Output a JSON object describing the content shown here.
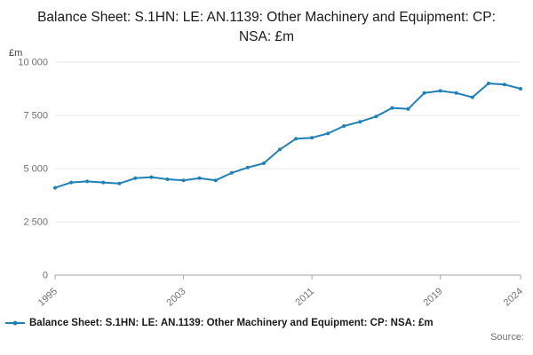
{
  "title": "Balance Sheet: S.1HN: LE: AN.1139: Other Machinery and Equipment: CP: NSA: £m",
  "source_label": "Source:",
  "legend": {
    "label": "Balance Sheet: S.1HN: LE: AN.1139: Other Machinery and Equipment: CP: NSA: £m"
  },
  "chart_data": {
    "type": "line",
    "title": "Balance Sheet: S.1HN: LE: AN.1139: Other Machinery and Equipment: CP: NSA: £m",
    "xlabel": "",
    "ylabel": "£m",
    "ylim": [
      0,
      10000
    ],
    "yticks": [
      0,
      2500,
      5000,
      7500,
      10000
    ],
    "ytick_labels": [
      "0",
      "2 500",
      "5 000",
      "7 500",
      "10 000"
    ],
    "xticks": [
      1995,
      2003,
      2011,
      2019,
      2024
    ],
    "grid": true,
    "legend_position": "bottom",
    "line_color": "#1f80b8",
    "x": [
      1995,
      1996,
      1997,
      1998,
      1999,
      2000,
      2001,
      2002,
      2003,
      2004,
      2005,
      2006,
      2007,
      2008,
      2009,
      2010,
      2011,
      2012,
      2013,
      2014,
      2015,
      2016,
      2017,
      2018,
      2019,
      2020,
      2021,
      2022,
      2023,
      2024
    ],
    "series": [
      {
        "name": "Balance Sheet: S.1HN: LE: AN.1139: Other Machinery and Equipment: CP: NSA: £m",
        "values": [
          4100,
          4350,
          4400,
          4350,
          4300,
          4550,
          4600,
          4500,
          4450,
          4550,
          4450,
          4800,
          5050,
          5250,
          5900,
          6400,
          6450,
          6650,
          7000,
          7200,
          7450,
          7850,
          7800,
          8550,
          8650,
          8550,
          8350,
          9000,
          8950,
          8750
        ]
      }
    ]
  }
}
